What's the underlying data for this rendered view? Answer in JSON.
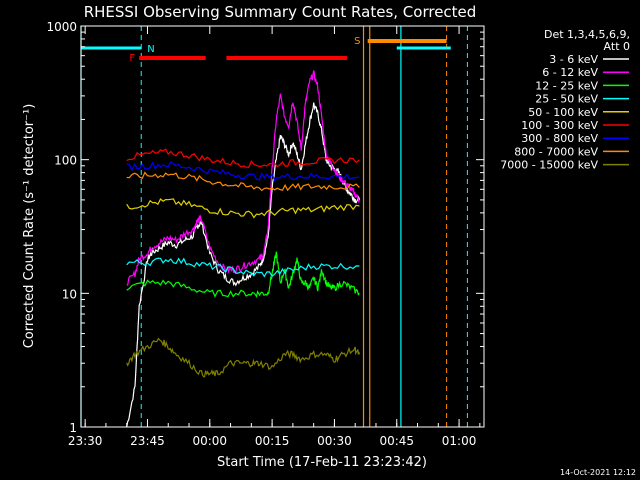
{
  "chart_data": {
    "type": "line",
    "title": "RHESSI Observing Summary Count Rates, Corrected",
    "xlabel": "Start Time (17-Feb-11 23:23:42)",
    "ylabel": "Corrected Count Rate (s⁻¹ detector⁻¹)",
    "yscale": "log",
    "ylim": [
      1,
      1000
    ],
    "xlim_minutes": [
      -31,
      66
    ],
    "x_ticks": [
      {
        "label": "23:30",
        "t": -30
      },
      {
        "label": "23:45",
        "t": -15
      },
      {
        "label": "00:00",
        "t": 0
      },
      {
        "label": "00:15",
        "t": 15
      },
      {
        "label": "00:30",
        "t": 30
      },
      {
        "label": "00:45",
        "t": 45
      },
      {
        "label": "01:00",
        "t": 60
      }
    ],
    "y_ticks": [
      {
        "label": "1",
        "v": 1
      },
      {
        "label": "10",
        "v": 10
      },
      {
        "label": "100",
        "v": 100
      },
      {
        "label": "1000",
        "v": 1000
      }
    ],
    "legend_header": [
      "Det 1,3,4,5,6,9,",
      "Att 0"
    ],
    "legend_position": "right",
    "footer_date": "14-Oct-2021 12:12",
    "series": [
      {
        "name": "3 - 6 keV",
        "color": "#ffffff",
        "t": [
          -20,
          -18,
          -17,
          -15,
          -14,
          -12,
          -10,
          -8,
          -6,
          -4,
          -3,
          -2,
          0,
          2,
          4,
          6,
          8,
          10,
          12,
          13,
          14,
          15,
          16,
          17,
          18,
          19,
          20,
          21,
          22,
          23,
          24,
          25,
          26,
          27,
          28,
          29,
          30,
          31,
          32,
          33,
          34,
          35,
          36
        ],
        "v": [
          1,
          2,
          8,
          18,
          20,
          22,
          24,
          23,
          25,
          27,
          32,
          34,
          20,
          15,
          13,
          12,
          13,
          14,
          16,
          19,
          26,
          60,
          100,
          150,
          130,
          110,
          135,
          110,
          85,
          130,
          190,
          260,
          220,
          160,
          100,
          90,
          85,
          80,
          70,
          60,
          55,
          50,
          50
        ]
      },
      {
        "name": "6 - 12 keV",
        "color": "#ff00ff",
        "t": [
          -20,
          -18,
          -17,
          -15,
          -14,
          -12,
          -10,
          -8,
          -6,
          -4,
          -3,
          -2,
          0,
          2,
          4,
          6,
          8,
          10,
          12,
          13,
          14,
          15,
          16,
          17,
          18,
          19,
          20,
          21,
          22,
          23,
          24,
          25,
          26,
          27,
          28,
          29,
          30,
          31,
          32,
          33,
          34,
          35,
          36
        ],
        "v": [
          12,
          14,
          18,
          20,
          22,
          24,
          26,
          25,
          28,
          30,
          35,
          36,
          22,
          17,
          15,
          15,
          16,
          17,
          18,
          20,
          30,
          85,
          200,
          300,
          210,
          180,
          280,
          190,
          120,
          260,
          380,
          440,
          350,
          200,
          110,
          95,
          85,
          75,
          70,
          65,
          60,
          55,
          50
        ]
      },
      {
        "name": "12 - 25 keV",
        "color": "#00ff00",
        "t": [
          -20,
          -15,
          -10,
          -5,
          0,
          5,
          10,
          12,
          14,
          15,
          16,
          17,
          18,
          19,
          20,
          21,
          22,
          23,
          24,
          25,
          26,
          27,
          28,
          29,
          30,
          32,
          34,
          36
        ],
        "v": [
          11,
          12,
          12,
          11,
          10,
          10,
          10,
          10,
          10,
          14,
          20,
          12,
          15,
          11,
          14,
          18,
          12,
          12,
          11,
          13,
          11,
          15,
          12,
          11,
          11,
          12,
          11,
          10
        ]
      },
      {
        "name": "25 - 50 keV",
        "color": "#00ffff",
        "t": [
          -20,
          -15,
          -10,
          -5,
          0,
          5,
          10,
          15,
          20,
          25,
          30,
          36
        ],
        "v": [
          17,
          17,
          18,
          17,
          16,
          15,
          14,
          14,
          15,
          16,
          16,
          16
        ]
      },
      {
        "name": "50 - 100 keV",
        "color": "#e0d000",
        "t": [
          -20,
          -15,
          -10,
          -5,
          0,
          5,
          10,
          15,
          20,
          25,
          30,
          36
        ],
        "v": [
          44,
          47,
          49,
          46,
          42,
          40,
          39,
          40,
          42,
          42,
          44,
          45
        ]
      },
      {
        "name": "100 - 300 keV",
        "color": "#ff0000",
        "t": [
          -20,
          -15,
          -10,
          -5,
          0,
          5,
          10,
          15,
          20,
          25,
          30,
          36
        ],
        "v": [
          103,
          110,
          114,
          108,
          100,
          95,
          92,
          92,
          95,
          97,
          99,
          100
        ]
      },
      {
        "name": "300 - 800 keV",
        "color": "#0000ff",
        "t": [
          -20,
          -15,
          -10,
          -5,
          0,
          5,
          10,
          15,
          20,
          25,
          30,
          36
        ],
        "v": [
          88,
          90,
          92,
          88,
          82,
          78,
          75,
          74,
          75,
          75,
          75,
          74
        ]
      },
      {
        "name": "800 - 7000 keV",
        "color": "#ff8c00",
        "t": [
          -20,
          -15,
          -10,
          -5,
          0,
          5,
          10,
          15,
          20,
          25,
          30,
          36
        ],
        "v": [
          74,
          76,
          78,
          74,
          69,
          65,
          62,
          61,
          62,
          63,
          63,
          62
        ]
      },
      {
        "name": "7000 - 15000 keV",
        "color": "#808000",
        "t": [
          -20,
          -18,
          -15,
          -12,
          -10,
          -8,
          -5,
          -2,
          0,
          2,
          5,
          8,
          10,
          12,
          15,
          18,
          20,
          22,
          25,
          28,
          30,
          32,
          35,
          36
        ],
        "v": [
          3,
          3.5,
          4,
          4.5,
          4,
          3.5,
          3,
          2.5,
          2.5,
          2.5,
          3,
          3,
          3,
          3,
          2.8,
          3.5,
          3.5,
          3.2,
          3.5,
          3.5,
          3.2,
          3.5,
          3.8,
          3.5
        ]
      }
    ],
    "annotations": [
      {
        "label": "N",
        "color": "#00ffff",
        "t": -16.5
      },
      {
        "label": "F",
        "color": "#ff0000",
        "t": -17.5
      },
      {
        "label": "S",
        "color": "#ff8c00",
        "t": 37
      }
    ],
    "flare_bars": [
      [
        -17,
        -1
      ],
      [
        4,
        33
      ]
    ],
    "saa_bar": [
      38,
      57
    ],
    "night_bars": [
      [
        -31,
        -16.5
      ],
      [
        45,
        58
      ]
    ],
    "vlines_cyan_solid": [
      -31,
      46
    ],
    "vlines_cyan_dashed": [
      -16.5,
      62
    ],
    "vlines_orange_solid": [
      37,
      38.5
    ],
    "vlines_orange_dashed": [
      57
    ]
  }
}
